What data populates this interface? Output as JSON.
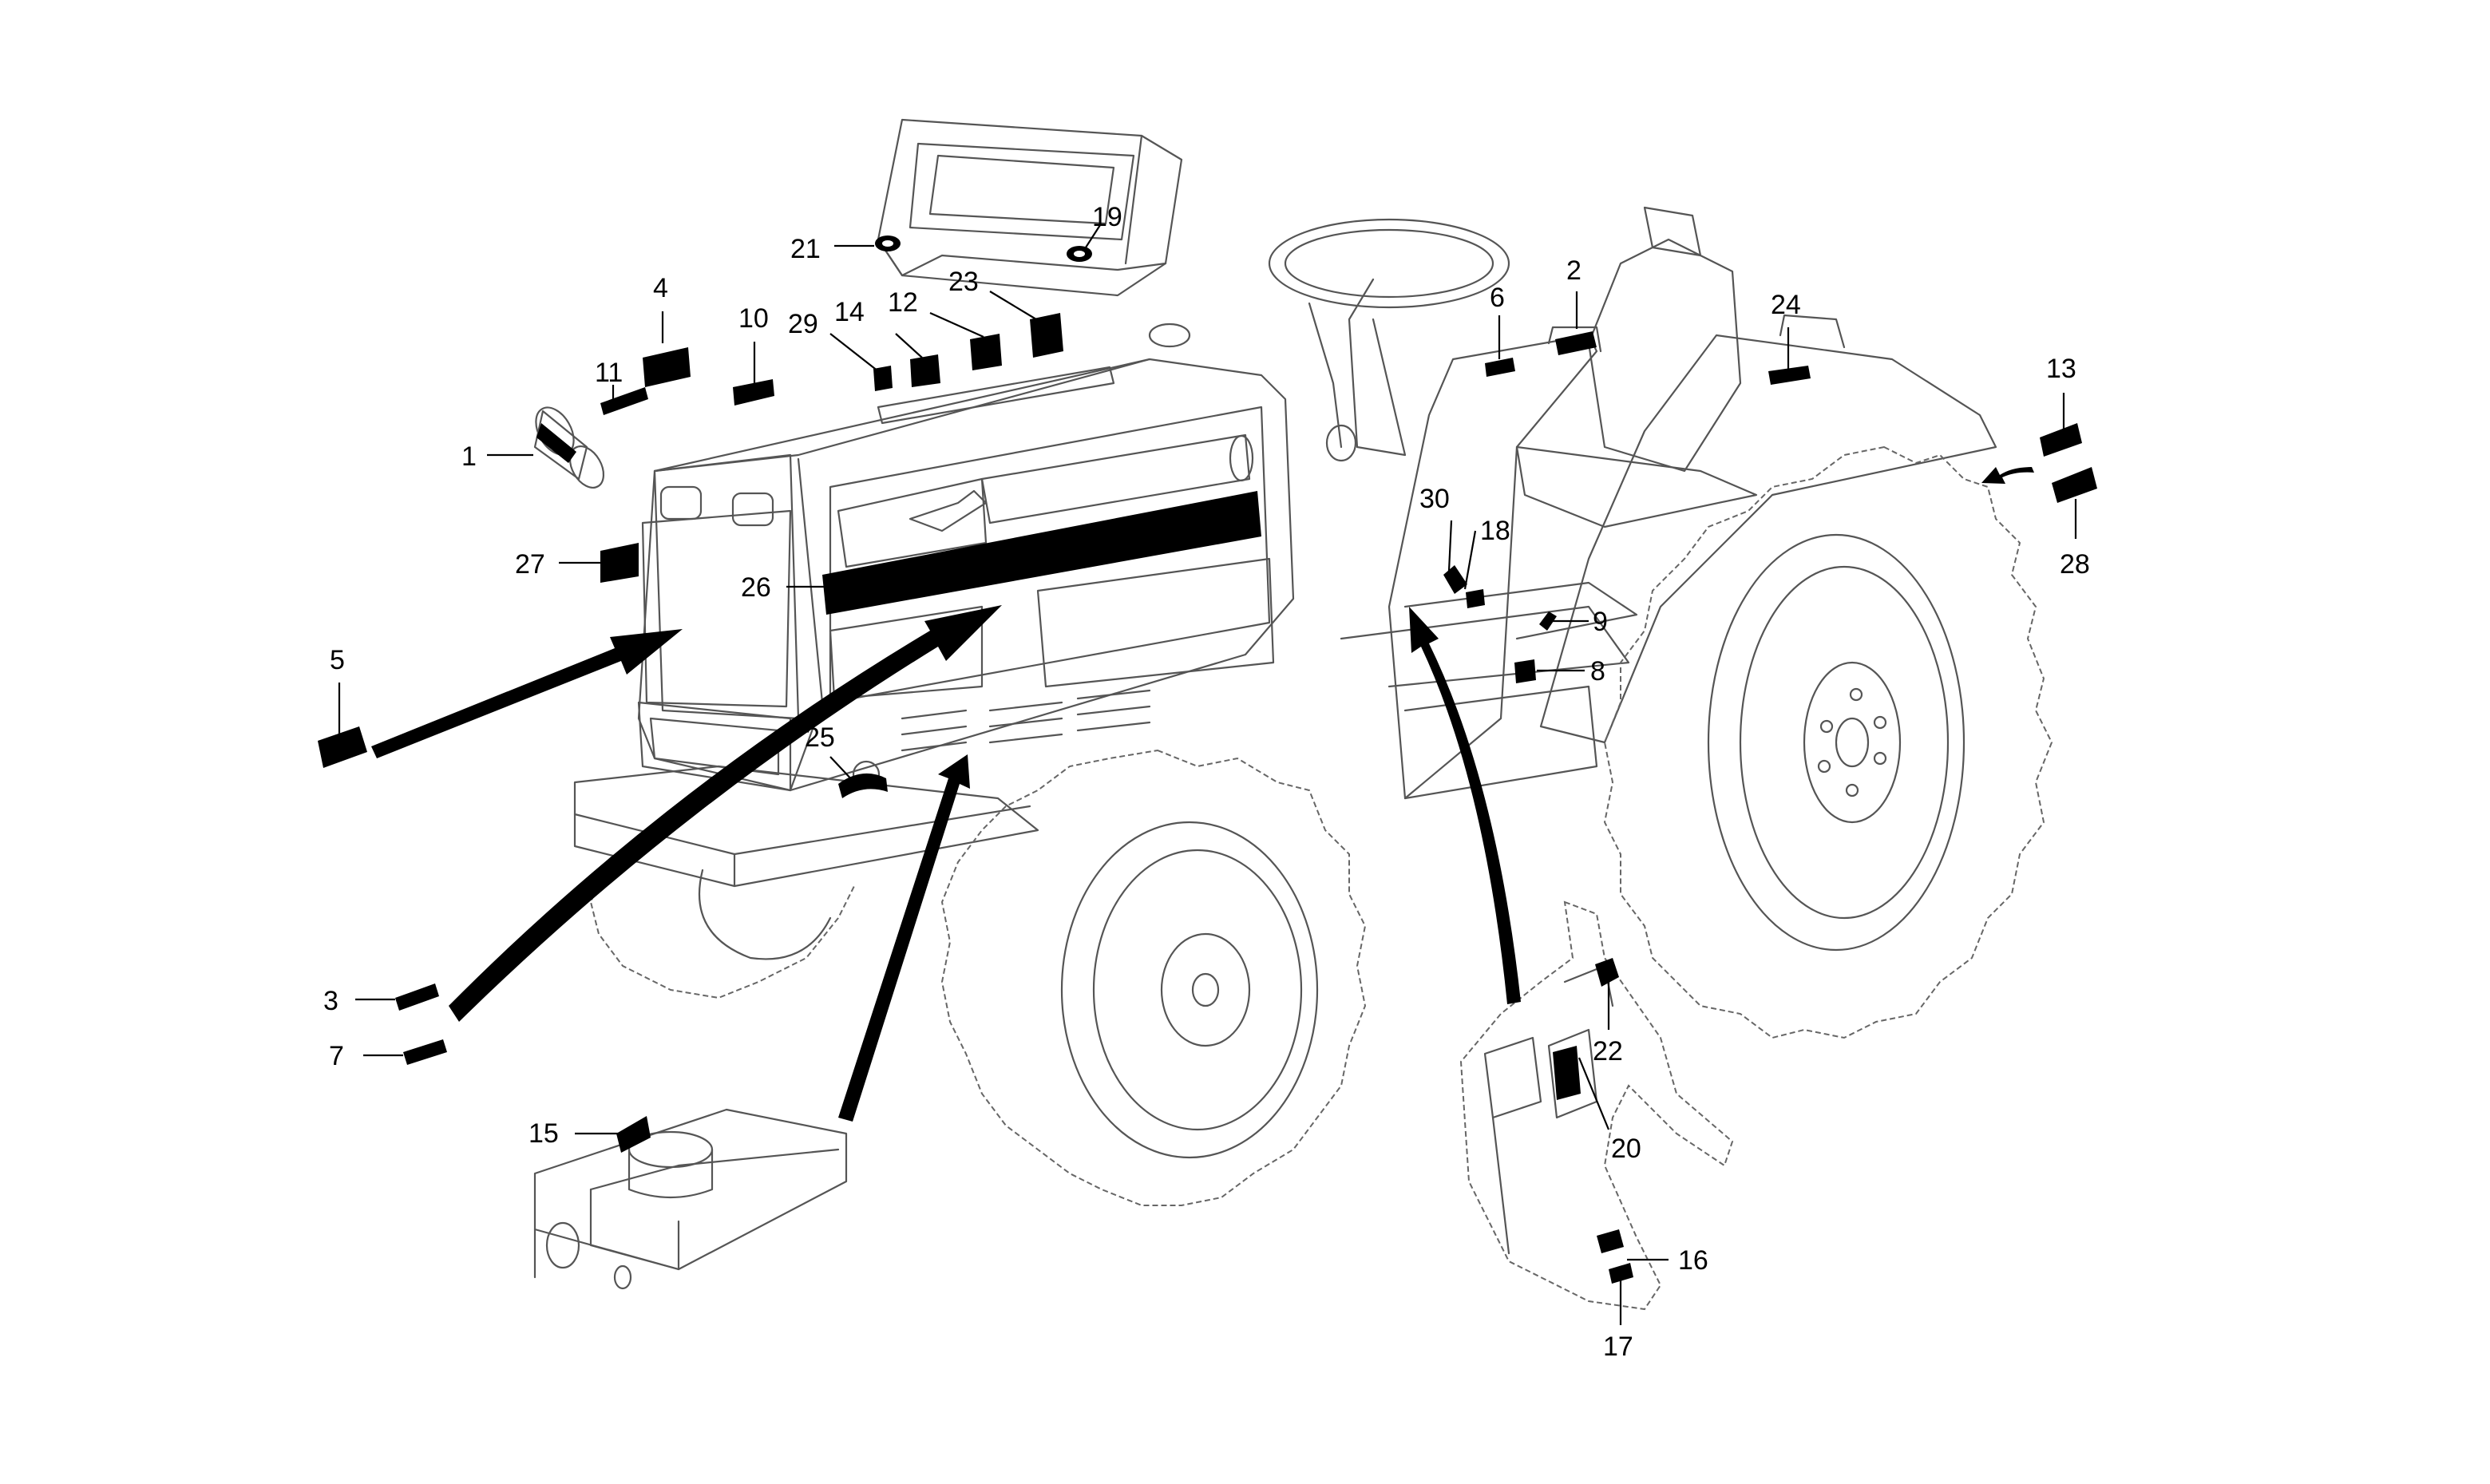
{
  "callouts": [
    {
      "id": "1",
      "label": "1"
    },
    {
      "id": "2",
      "label": "2"
    },
    {
      "id": "3",
      "label": "3"
    },
    {
      "id": "4",
      "label": "4"
    },
    {
      "id": "5",
      "label": "5"
    },
    {
      "id": "6",
      "label": "6"
    },
    {
      "id": "7",
      "label": "7"
    },
    {
      "id": "8",
      "label": "8"
    },
    {
      "id": "9",
      "label": "9"
    },
    {
      "id": "10",
      "label": "10"
    },
    {
      "id": "11",
      "label": "11"
    },
    {
      "id": "12",
      "label": "12"
    },
    {
      "id": "13",
      "label": "13"
    },
    {
      "id": "14",
      "label": "14"
    },
    {
      "id": "15",
      "label": "15"
    },
    {
      "id": "16",
      "label": "16"
    },
    {
      "id": "17",
      "label": "17"
    },
    {
      "id": "18",
      "label": "18"
    },
    {
      "id": "19",
      "label": "19"
    },
    {
      "id": "20",
      "label": "20"
    },
    {
      "id": "21",
      "label": "21"
    },
    {
      "id": "22",
      "label": "22"
    },
    {
      "id": "23",
      "label": "23"
    },
    {
      "id": "24",
      "label": "24"
    },
    {
      "id": "25",
      "label": "25"
    },
    {
      "id": "26",
      "label": "26"
    },
    {
      "id": "27",
      "label": "27"
    },
    {
      "id": "28",
      "label": "28"
    },
    {
      "id": "29",
      "label": "29"
    },
    {
      "id": "30",
      "label": "30"
    }
  ]
}
